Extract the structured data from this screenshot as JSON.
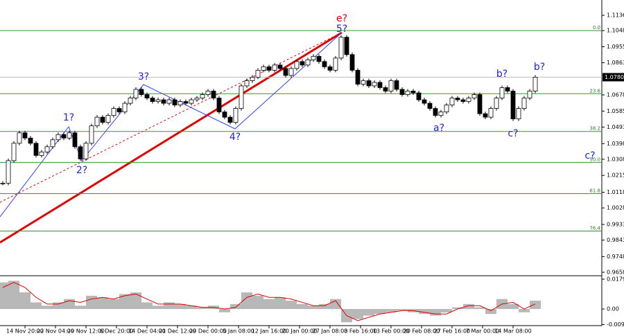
{
  "chart_data": {
    "type": "candlestick",
    "closes": [
      1.017,
      1.03,
      1.04,
      1.046,
      1.043,
      1.04,
      1.033,
      1.035,
      1.038,
      1.042,
      1.045,
      1.043,
      1.046,
      1.038,
      1.031,
      1.04,
      1.05,
      1.055,
      1.052,
      1.056,
      1.06,
      1.058,
      1.063,
      1.066,
      1.071,
      1.068,
      1.066,
      1.064,
      1.065,
      1.063,
      1.065,
      1.062,
      1.064,
      1.063,
      1.065,
      1.066,
      1.068,
      1.07,
      1.066,
      1.058,
      1.055,
      1.052,
      1.06,
      1.073,
      1.076,
      1.078,
      1.082,
      1.084,
      1.082,
      1.085,
      1.083,
      1.079,
      1.083,
      1.087,
      1.085,
      1.088,
      1.09,
      1.087,
      1.084,
      1.082,
      1.089,
      1.101,
      1.091,
      1.082,
      1.074,
      1.076,
      1.073,
      1.075,
      1.072,
      1.07,
      1.076,
      1.071,
      1.068,
      1.07,
      1.069,
      1.065,
      1.063,
      1.06,
      1.056,
      1.058,
      1.062,
      1.066,
      1.065,
      1.064,
      1.066,
      1.068,
      1.057,
      1.055,
      1.06,
      1.066,
      1.072,
      1.07,
      1.054,
      1.06,
      1.066,
      1.07,
      1.078
    ],
    "ylim": [
      0.9642,
      1.1224
    ],
    "yticks": [
      1.1136,
      1.1048,
      1.0955,
      1.0863,
      1.0678,
      1.0585,
      1.0493,
      1.0398,
      1.0308,
      1.0215,
      1.0118,
      1.0028,
      0.9933,
      0.9843,
      0.9748,
      0.9658
    ],
    "x_labels": [
      "14 Nov 20:00",
      "22 Nov 04:00",
      "29 Nov 12:00",
      "6 Dec 20:00",
      "14 Dec 04:00",
      "21 Dec 12:00",
      "29 Dec 00:00",
      "5 Jan 08:00",
      "12 Jan 16:00",
      "20 Jan 00:00",
      "27 Jan 08:00",
      "3 Feb 16:00",
      "13 Feb 00:00",
      "20 Feb 08:00",
      "27 Feb 16:00",
      "7 Mar 00:00",
      "14 Mar 08:00"
    ],
    "fib_levels": [
      {
        "value": 1.1048,
        "label": "0.0"
      },
      {
        "value": 1.0685,
        "label": "23.6"
      },
      {
        "value": 1.0468,
        "label": "38.2"
      },
      {
        "value": 1.029,
        "label": "50.0"
      },
      {
        "value": 1.011,
        "label": "61.8"
      },
      {
        "value": 0.9895,
        "label": "76.4"
      }
    ],
    "last_price": {
      "value": 1.078,
      "label": "1.0780"
    },
    "wave_labels": [
      "e?",
      "5?",
      "1?",
      "2?",
      "3?",
      "4?",
      "a?",
      "b?",
      "c?",
      "b?",
      "c?"
    ],
    "oscillator": {
      "type": "histogram",
      "values": [
        0.016,
        0.017,
        0.01,
        0.004,
        0.002,
        0.004,
        0.006,
        0.002,
        0.008,
        0.007,
        0.006,
        0.009,
        0.01,
        0.004,
        0.002,
        0.004,
        0.003,
        0.002,
        0.001,
        0.002,
        -0.002,
        0.003,
        0.01,
        0.008,
        0.006,
        0.007,
        0.005,
        0.003,
        0.002,
        0.003,
        0.006,
        -0.008,
        -0.006,
        -0.004,
        -0.003,
        -0.002,
        -0.001,
        -0.002,
        -0.003,
        -0.004,
        -0.002,
        0.001,
        0.003,
        0.001,
        -0.003,
        0.006,
        0.003,
        -0.002,
        0.005
      ],
      "signal": [
        0.013,
        0.016,
        0.013,
        0.007,
        0.003,
        0.003,
        0.005,
        0.004,
        0.006,
        0.007,
        0.006,
        0.008,
        0.009,
        0.006,
        0.003,
        0.003,
        0.003,
        0.002,
        0.001,
        0.001,
        0.0,
        0.001,
        0.007,
        0.009,
        0.007,
        0.007,
        0.006,
        0.004,
        0.002,
        0.002,
        0.005,
        -0.004,
        -0.007,
        -0.005,
        -0.003,
        -0.002,
        -0.001,
        -0.001,
        -0.002,
        -0.003,
        -0.003,
        0.0,
        0.002,
        0.002,
        -0.001,
        0.003,
        0.004,
        0.0,
        0.003
      ],
      "ylim": [
        -0.01,
        0.0192
      ],
      "yticks": [
        0.01797,
        {
          "value": 0,
          "label": "0.00"
        },
        -0.0094
      ]
    }
  }
}
